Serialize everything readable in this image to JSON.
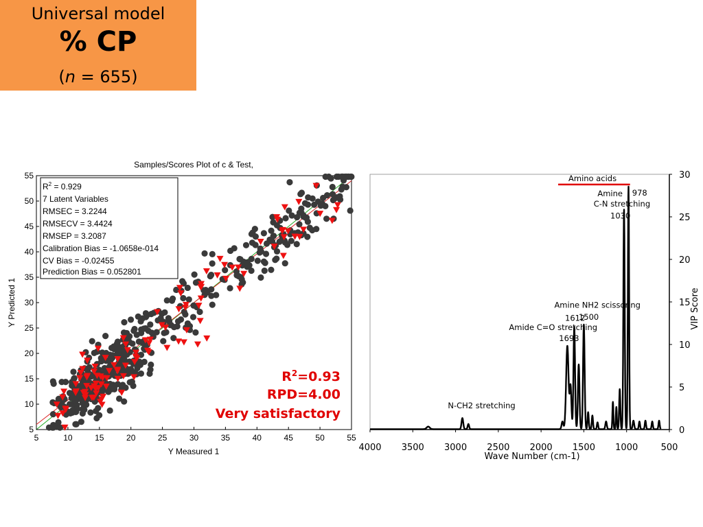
{
  "header": {
    "model_label": "Universal model",
    "property": "% CP",
    "n_prefix": "(",
    "n_symbol": "n",
    "n_suffix": " = 655)"
  },
  "chart_data": [
    {
      "type": "scatter",
      "title": "Samples/Scores Plot of c & Test,",
      "xlabel": "Y Measured 1",
      "ylabel": "Y Predicted 1",
      "xlim": [
        5,
        55
      ],
      "ylim": [
        5,
        55
      ],
      "xticks": [
        5,
        10,
        15,
        20,
        25,
        30,
        35,
        40,
        45,
        50,
        55
      ],
      "yticks": [
        5,
        10,
        15,
        20,
        25,
        30,
        35,
        40,
        45,
        50,
        55
      ],
      "grid": false,
      "stats_box": [
        {
          "base": "R",
          "sup": "2",
          "rest": " = 0.929"
        },
        {
          "base": "7 Latent Variables"
        },
        {
          "base": "RMSEC = 3.2244"
        },
        {
          "base": "RMSECV = 3.4424"
        },
        {
          "base": "RMSEP = 3.2087"
        },
        {
          "base": "Calibration Bias = -1.0658e-014"
        },
        {
          "base": "CV Bias = -0.02455"
        },
        {
          "base": "Prediction Bias = 0.052801"
        }
      ],
      "annotation": {
        "r2_base": "R",
        "r2_sup": "2",
        "r2_rest": "=0.93",
        "rpd": "RPD=4.00",
        "verdict": "Very satisfactory"
      },
      "lines": [
        {
          "color": "#22aa22",
          "points": [
            [
              5,
              5
            ],
            [
              55,
              55
            ]
          ]
        },
        {
          "color": "#dd2222",
          "points": [
            [
              5,
              6.0
            ],
            [
              55,
              54.0
            ]
          ]
        }
      ],
      "series": [
        {
          "marker": "circle",
          "color": "#3a3a3a",
          "count": 540,
          "x_range": [
            7,
            55
          ],
          "slope": 1.0,
          "intercept": 0.0,
          "spread": 3.2
        },
        {
          "marker": "triangle-down",
          "color": "#ee1111",
          "count": 115,
          "x_range": [
            7,
            53
          ],
          "slope": 1.0,
          "intercept": 0.0,
          "spread": 3.2
        }
      ]
    },
    {
      "type": "line",
      "title": "",
      "xlabel": "Wave Number (cm-1)",
      "ylabel": "VIP Score",
      "xlim": [
        4000,
        500
      ],
      "ylim": [
        0,
        30
      ],
      "xticks": [
        4000,
        3500,
        3000,
        2500,
        2000,
        1500,
        1000,
        500
      ],
      "yticks": [
        0,
        5,
        10,
        15,
        20,
        25,
        30
      ],
      "y_axis_side": "right",
      "grid": false,
      "peaks": [
        {
          "x": 3320,
          "h": 0.3,
          "w": 25
        },
        {
          "x": 2920,
          "h": 1.3,
          "w": 14
        },
        {
          "x": 2850,
          "h": 0.6,
          "w": 12
        },
        {
          "x": 1750,
          "h": 0.9,
          "w": 14
        },
        {
          "x": 1693,
          "h": 9.8,
          "w": 20
        },
        {
          "x": 1655,
          "h": 5.0,
          "w": 14
        },
        {
          "x": 1612,
          "h": 12.0,
          "w": 13
        },
        {
          "x": 1560,
          "h": 7.6,
          "w": 13
        },
        {
          "x": 1500,
          "h": 12.3,
          "w": 13
        },
        {
          "x": 1450,
          "h": 2.0,
          "w": 10
        },
        {
          "x": 1400,
          "h": 1.6,
          "w": 10
        },
        {
          "x": 1340,
          "h": 0.8,
          "w": 10
        },
        {
          "x": 1240,
          "h": 0.9,
          "w": 12
        },
        {
          "x": 1160,
          "h": 3.2,
          "w": 8
        },
        {
          "x": 1120,
          "h": 2.6,
          "w": 8
        },
        {
          "x": 1080,
          "h": 4.7,
          "w": 10
        },
        {
          "x": 1030,
          "h": 25.8,
          "w": 11
        },
        {
          "x": 978,
          "h": 28.5,
          "w": 10
        },
        {
          "x": 920,
          "h": 1.0,
          "w": 12
        },
        {
          "x": 850,
          "h": 0.9,
          "w": 10
        },
        {
          "x": 780,
          "h": 1.0,
          "w": 10
        },
        {
          "x": 700,
          "h": 0.9,
          "w": 10
        },
        {
          "x": 620,
          "h": 1.0,
          "w": 10
        }
      ],
      "annotations": [
        {
          "text": "Amino acids",
          "x": 1680,
          "y": 29.2,
          "underline": true,
          "underline_x": [
            1800,
            960
          ],
          "underline_y": 28.8
        },
        {
          "text": "Amine",
          "x": 1340,
          "y": 27.4
        },
        {
          "text": "C-N stretching",
          "x": 1385,
          "y": 26.2
        },
        {
          "text": "1030",
          "x": 1190,
          "y": 24.8
        },
        {
          "text": "978",
          "x": 935,
          "y": 27.5
        },
        {
          "text": "Amine NH2 scissoring",
          "x": 1845,
          "y": 14.3
        },
        {
          "text": "1612",
          "x": 1720,
          "y": 12.8
        },
        {
          "text": "1500",
          "x": 1560,
          "y": 12.9
        },
        {
          "text": "Amide C=O stretching",
          "x": 2375,
          "y": 11.7
        },
        {
          "text": "1693",
          "x": 1790,
          "y": 10.4
        },
        {
          "text": "N-CH2 stretching",
          "x": 3090,
          "y": 2.5
        }
      ]
    }
  ]
}
